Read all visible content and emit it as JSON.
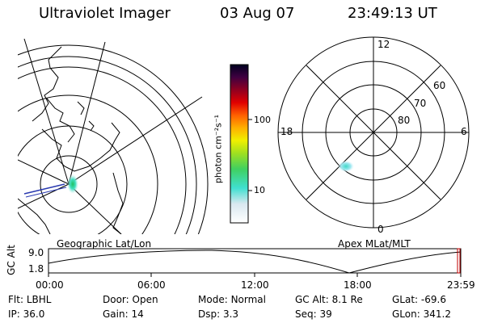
{
  "header": {
    "instrument": "Ultraviolet Imager",
    "date": "03 Aug 07",
    "time": "23:49:13 UT"
  },
  "maps": {
    "left_label": "Geographic Lat/Lon",
    "right_label": "Apex MLat/MLT",
    "mlt_labels": {
      "top": "12",
      "left": "18",
      "right": "6",
      "bottom": "0"
    },
    "mlat_labels": [
      "60",
      "70",
      "80"
    ]
  },
  "colorbar": {
    "unit_label": "photon cm⁻²s⁻¹",
    "ticks": [
      "100",
      "10"
    ]
  },
  "altitude_plot": {
    "ylabel": "GC Alt",
    "ymax_label": "9.0",
    "ymin_label": "1.8",
    "xticks": [
      "00:00",
      "06:00",
      "12:00",
      "18:00",
      "23:59"
    ]
  },
  "status": {
    "row1": [
      {
        "label": "Flt:",
        "value": "LBHL"
      },
      {
        "label": "Door:",
        "value": "Open"
      },
      {
        "label": "Mode:",
        "value": "Normal"
      },
      {
        "label": "GC Alt:",
        "value": "8.1 Re"
      },
      {
        "label": "GLat:",
        "value": "-69.6"
      }
    ],
    "row2": [
      {
        "label": "IP:",
        "value": "36.0"
      },
      {
        "label": "Gain:",
        "value": "14"
      },
      {
        "label": "Dsp:",
        "value": "3.3"
      },
      {
        "label": "Seq:",
        "value": "39"
      },
      {
        "label": "GLon:",
        "value": "341.2"
      }
    ]
  }
}
